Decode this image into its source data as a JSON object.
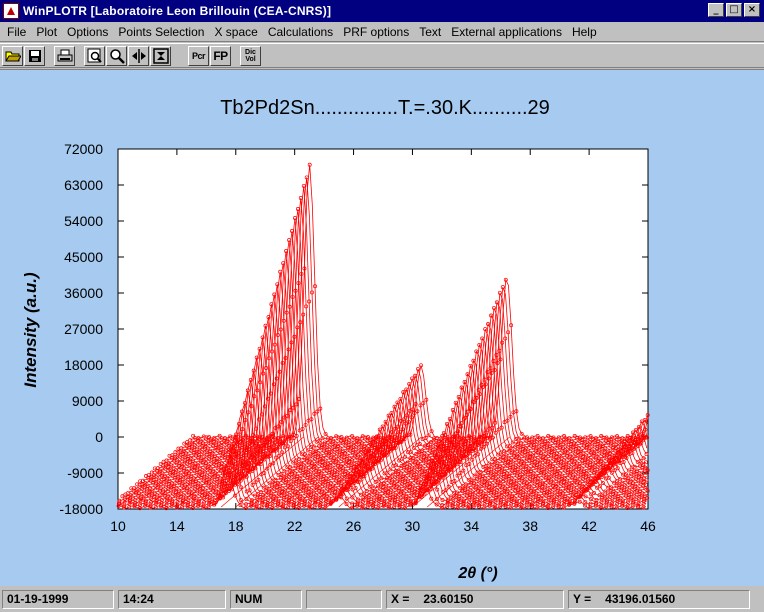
{
  "window": {
    "title": "WinPLOTR [Laboratoire Leon Brillouin (CEA-CNRS)]",
    "minimize_glyph": "_",
    "maximize_glyph": "□",
    "close_glyph": "×"
  },
  "menu": [
    "File",
    "Plot",
    "Options",
    "Points Selection",
    "X space",
    "Calculations",
    "PRF options",
    "Text",
    "External applications",
    "Help"
  ],
  "toolbar": {
    "icons": [
      "open-folder-icon",
      "save-disk-icon",
      "printer-icon",
      "zoom-window-icon",
      "zoom-icon",
      "pan-horizontal-icon",
      "fit-vertical-icon"
    ],
    "pcr_label": "Pcr",
    "fp_label": "FP",
    "dic_label_top": "Dic",
    "dic_label_bottom": "Vol"
  },
  "status": {
    "date": "01-19-1999",
    "time": "14:24",
    "num": "NUM",
    "empty": "",
    "x_label": "X =",
    "x_value": "23.60150",
    "y_label": "Y =",
    "y_value": "43196.01560"
  },
  "chart_data": {
    "type": "line",
    "title": "Tb2Pd2Sn...............T.=.30.K..........29",
    "xlabel": "2θ (°)",
    "ylabel": "Intensity (a.u.)",
    "xlim": [
      10,
      46
    ],
    "ylim": [
      -18000,
      72000
    ],
    "xticks": [
      "10",
      "14",
      "18",
      "22",
      "26",
      "30",
      "34",
      "38",
      "42",
      "46"
    ],
    "yticks": [
      "72000",
      "63000",
      "54000",
      "45000",
      "36000",
      "27000",
      "18000",
      "9000",
      "0",
      "-9000",
      "-18000"
    ],
    "stacked_patterns": 29,
    "series_color": "#ff0000",
    "background_color": "#a6caf0",
    "peaks": [
      {
        "position_2theta": 17.4,
        "max_intensity": 68000
      },
      {
        "position_2theta": 25.0,
        "max_intensity": 18000
      },
      {
        "position_2theta": 30.8,
        "max_intensity": 40000
      },
      {
        "position_2theta": 41.2,
        "max_intensity": 9000
      }
    ]
  }
}
